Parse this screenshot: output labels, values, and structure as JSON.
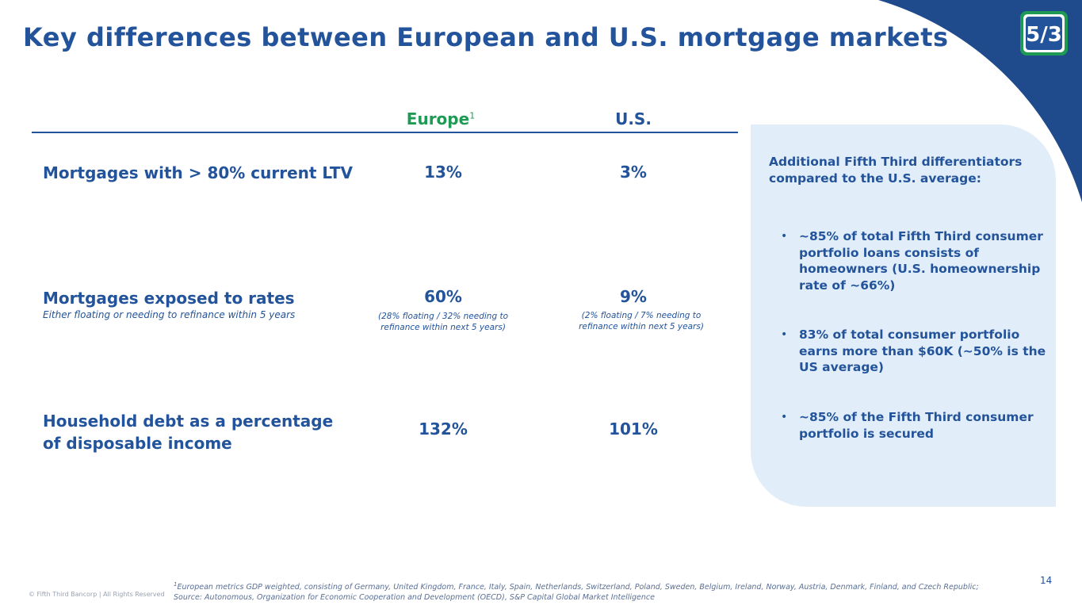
{
  "header": {
    "title": "Key differences between European and U.S. mortgage markets",
    "logo_text": "5/3",
    "colors": {
      "brand_blue": "#23539a",
      "europe_green": "#1f9a55",
      "panel_bg": "#e1eef9",
      "swoosh": "#1f4a8c"
    }
  },
  "table": {
    "columns": {
      "europe": "Europe",
      "europe_sup": "1",
      "us": "U.S."
    },
    "rows": [
      {
        "label": "Mortgages with > 80% current LTV",
        "sub": "",
        "europe": "13%",
        "us": "3%",
        "europe_note": "",
        "us_note": ""
      },
      {
        "label": "Mortgages exposed to rates",
        "sub": "Either floating or needing to refinance within 5 years",
        "europe": "60%",
        "us": "9%",
        "europe_note_1": "(28% floating / 32% needing to",
        "europe_note_2": "refinance within next 5 years)",
        "us_note_1": "(2% floating / 7% needing to",
        "us_note_2": "refinance within next 5 years)"
      },
      {
        "label_1": "Household debt as a percentage",
        "label_2": "of disposable income",
        "europe": "132%",
        "us": "101%"
      }
    ]
  },
  "panel": {
    "heading_1": "Additional Fifth Third differentiators",
    "heading_2": "compared to the U.S. average:",
    "bullets": [
      "~85% of total Fifth Third consumer portfolio loans consists of homeowners (U.S. homeownership rate of ~66%)",
      "83% of total consumer portfolio earns more than $60K (~50% is the US average)",
      "~85% of the Fifth Third consumer portfolio is secured"
    ],
    "bullet_glyph": "•"
  },
  "footer": {
    "footnote_sup": "1",
    "footnote_1": "European metrics GDP weighted, consisting of Germany, United Kingdom, France, Italy, Spain, Netherlands, Switzerland, Poland, Sweden, Belgium, Ireland, Norway, Austria, Denmark, Finland, and Czech Republic;",
    "footnote_2": "Source: Autonomous, Organization for Economic Cooperation and Development (OECD), S&P Capital Global Market Intelligence",
    "copyright": "© Fifth Third Bancorp | All Rights Reserved",
    "page_number": "14"
  }
}
